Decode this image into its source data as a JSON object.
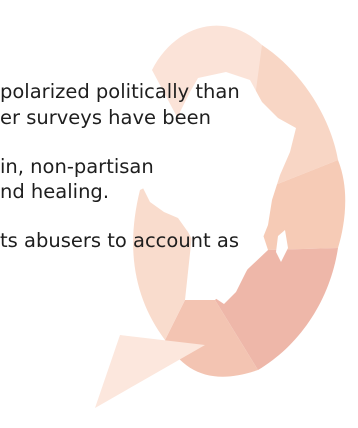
{
  "excerpt": {
    "lines": [
      " polarized politically than",
      "er surveys have been",
      " in, non-partisan",
      "nd healing.",
      "ts abusers to account as"
    ]
  },
  "watermark": {
    "icon": "africa-speech-bubble-logo",
    "colors": {
      "petal_light": "#fbe3d8",
      "petal_mid": "#f6cbb6",
      "petal_dark": "#eeb7a9",
      "continent": "#ffffff",
      "tail": "#fce7dd"
    }
  }
}
